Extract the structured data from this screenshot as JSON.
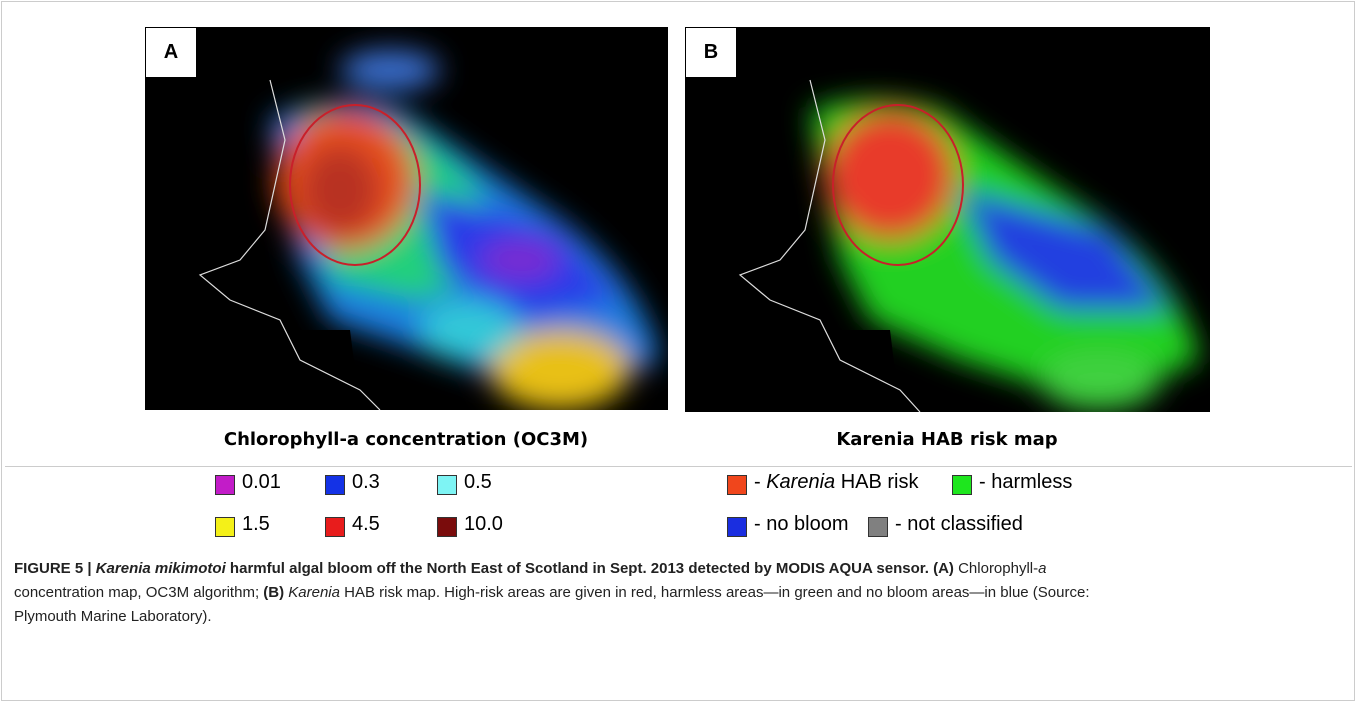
{
  "panels": [
    {
      "label": "A",
      "legend": {
        "title": "Chlorophyll-a concentration (OC3M)",
        "items": [
          {
            "label": "0.01",
            "color": "#c21cc8"
          },
          {
            "label": "0.3",
            "color": "#1432e6"
          },
          {
            "label": "0.5",
            "color": "#7ef4f4"
          },
          {
            "label": "1.5",
            "color": "#f4f018"
          },
          {
            "label": "4.5",
            "color": "#e81c1c"
          },
          {
            "label": "10.0",
            "color": "#7a0c0c"
          }
        ]
      }
    },
    {
      "label": "B",
      "legend": {
        "title": "Karenia HAB risk map",
        "items": [
          {
            "parts": [
              {
                "text": "- ",
                "style": "normal"
              },
              {
                "text": "Karenia",
                "style": "italic"
              },
              {
                "text": " HAB risk",
                "style": "normal"
              }
            ],
            "color": "#f0461c"
          },
          {
            "parts": [
              {
                "text": "- harmless",
                "style": "normal"
              }
            ],
            "color": "#1ee61e"
          },
          {
            "parts": [
              {
                "text": "- no bloom",
                "style": "normal"
              }
            ],
            "color": "#1a2ee0"
          },
          {
            "parts": [
              {
                "text": "- not classified",
                "style": "normal"
              }
            ],
            "color": "#808080"
          }
        ]
      }
    }
  ],
  "caption": {
    "lines": [
      [
        {
          "text": "FIGURE 5 | ",
          "style": "bold"
        },
        {
          "text": "Karenia mikimotoi",
          "style": "bold-italic"
        },
        {
          "text": " harmful algal bloom off the North East of Scotland in Sept. 2013 detected by MODIS AQUA sensor. (A)",
          "style": "bold"
        },
        {
          "text": " Chlorophyll-",
          "style": "normal"
        },
        {
          "text": "a",
          "style": "italic"
        }
      ],
      [
        {
          "text": "concentration map, OC3M algorithm; ",
          "style": "normal"
        },
        {
          "text": "(B) ",
          "style": "bold"
        },
        {
          "text": "Karenia",
          "style": "italic"
        },
        {
          "text": " HAB risk map. High-risk areas are given in red, harmless areas—in green and no bloom areas—in blue (Source:",
          "style": "normal"
        }
      ],
      [
        {
          "text": "Plymouth Marine Laboratory).",
          "style": "normal"
        }
      ]
    ]
  }
}
